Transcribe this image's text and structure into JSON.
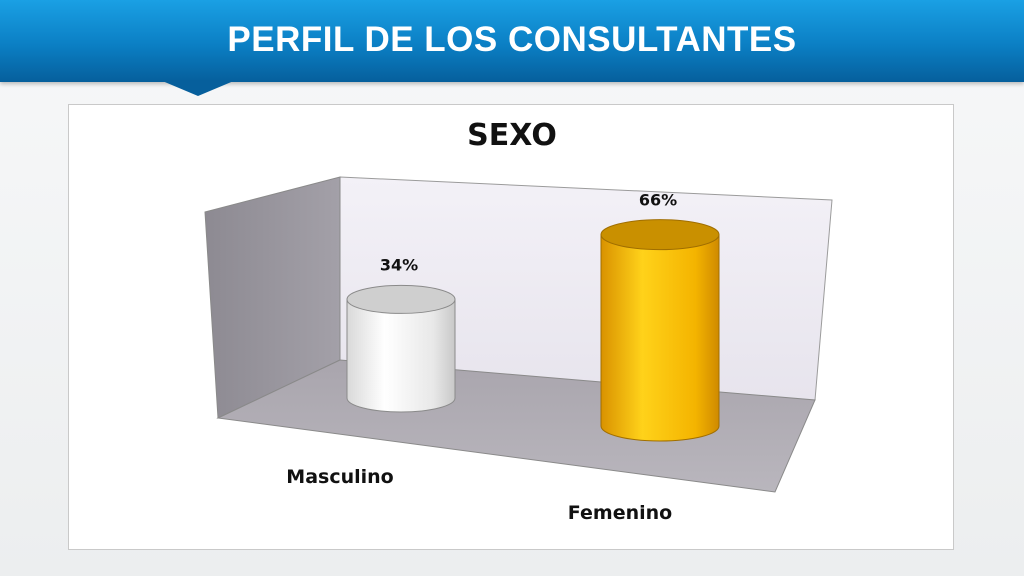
{
  "slide": {
    "title": "PERFIL DE LOS CONSULTANTES"
  },
  "chart_data": {
    "type": "bar",
    "title": "SEXO",
    "categories": [
      "Masculino",
      "Femenino"
    ],
    "values": [
      34,
      66
    ],
    "value_labels": [
      "34%",
      "66%"
    ],
    "ylim": [
      0,
      100
    ],
    "grid": false,
    "colors": [
      "#f2f2f2",
      "#f4b400"
    ]
  }
}
